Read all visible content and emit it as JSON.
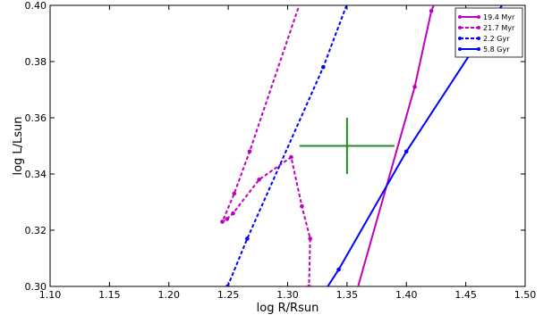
{
  "chart_data": {
    "type": "line",
    "title": "",
    "xlabel": "log R/Rsun",
    "ylabel": "log L/Lsun",
    "xlim": [
      1.1,
      1.5
    ],
    "ylim": [
      0.3,
      0.4
    ],
    "xticks": [
      "1.10",
      "1.15",
      "1.20",
      "1.25",
      "1.30",
      "1.35",
      "1.40",
      "1.45",
      "1.50"
    ],
    "yticks": [
      "0.30",
      "0.32",
      "0.34",
      "0.36",
      "0.38",
      "0.40"
    ],
    "grid": false,
    "legend_position": "top-right",
    "series": [
      {
        "name": "19.4 Myr",
        "color": "#bf00bf",
        "linestyle": "solid",
        "points": [
          [
            1.359,
            0.2995
          ],
          [
            1.407,
            0.371
          ],
          [
            1.421,
            0.398
          ],
          [
            1.424,
            0.401
          ]
        ]
      },
      {
        "name": "21.7 Myr",
        "color": "#bf00bf",
        "linestyle": "dashed",
        "points": [
          [
            1.3105,
            0.401
          ],
          [
            1.268,
            0.348
          ],
          [
            1.255,
            0.333
          ],
          [
            1.245,
            0.323
          ],
          [
            1.249,
            0.324
          ],
          [
            1.254,
            0.326
          ],
          [
            1.276,
            0.338
          ],
          [
            1.303,
            0.346
          ],
          [
            1.312,
            0.3285
          ],
          [
            1.319,
            0.317
          ],
          [
            1.318,
            0.3
          ]
        ]
      },
      {
        "name": "2.2 Gyr",
        "color": "#0000ff",
        "linestyle": "dashed",
        "points": [
          [
            1.2495,
            0.3
          ],
          [
            1.266,
            0.317
          ],
          [
            1.33,
            0.378
          ],
          [
            1.3505,
            0.401
          ]
        ]
      },
      {
        "name": "5.8 Gyr",
        "color": "#0000ff",
        "linestyle": "solid",
        "points": [
          [
            1.333,
            0.2995
          ],
          [
            1.343,
            0.306
          ],
          [
            1.4,
            0.348
          ],
          [
            1.482,
            0.401
          ]
        ]
      }
    ],
    "errorbar": {
      "color": "#228b22",
      "x": 1.35,
      "y": 0.35,
      "xerr": [
        1.31,
        1.39
      ],
      "yerr": [
        0.34,
        0.36
      ]
    }
  }
}
